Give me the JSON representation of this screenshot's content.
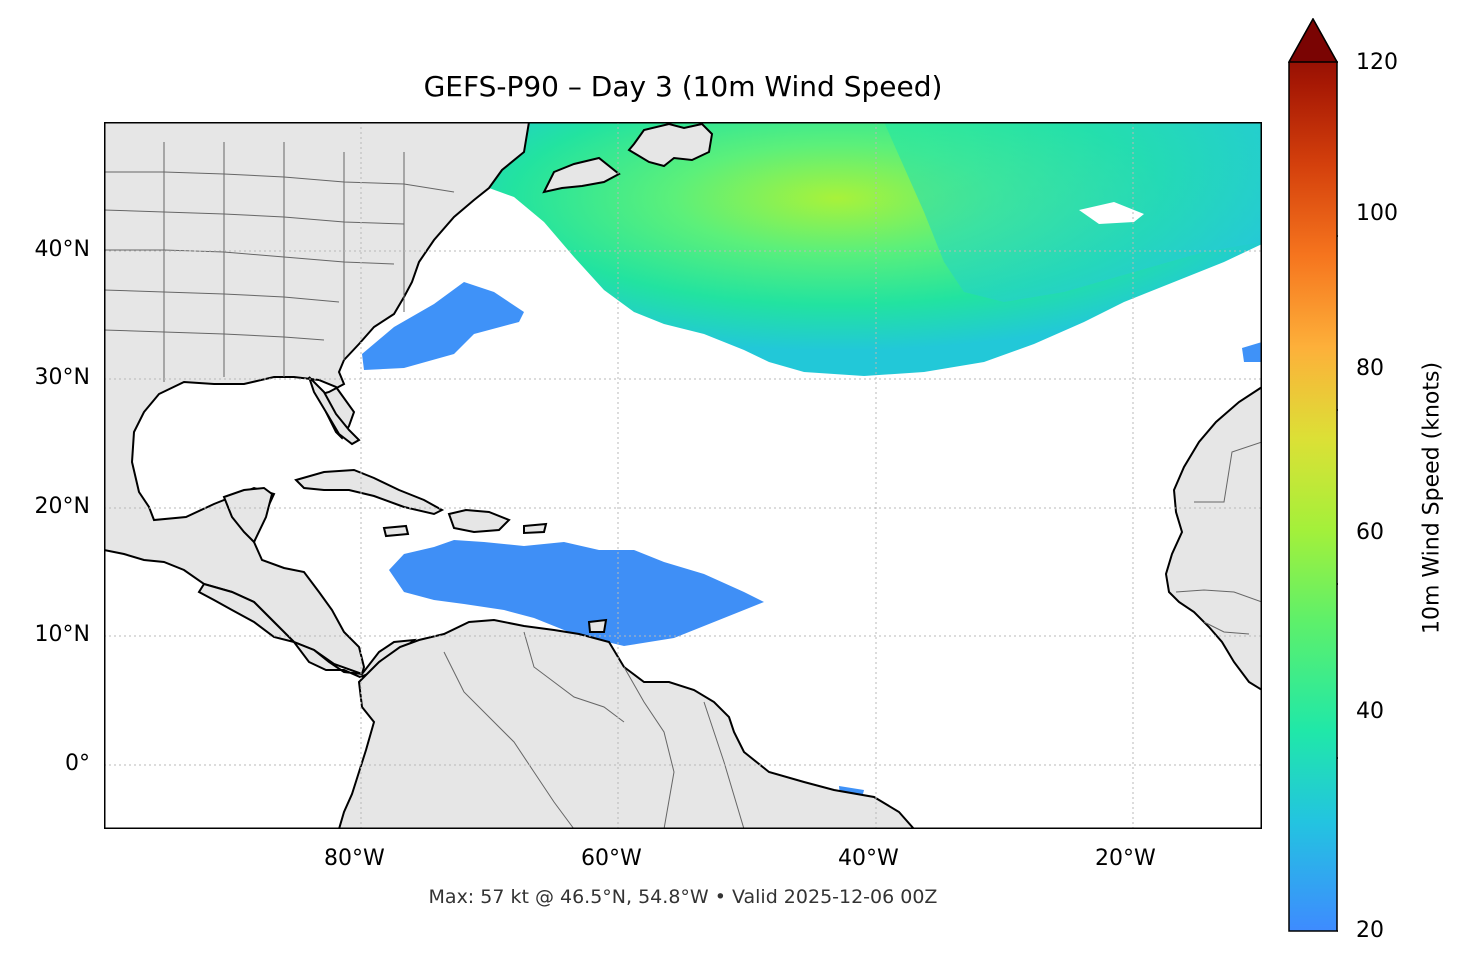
{
  "title": "GEFS-P90 – Day 3 (10m Wind Speed)",
  "caption": "Max: 57 kt @ 46.5°N, 54.8°W • Valid 2025-12-06 00Z",
  "map": {
    "extent": {
      "lon_min": -100,
      "lon_max": -10,
      "lat_min": -5,
      "lat_max": 50
    },
    "lat_ticks": [
      {
        "value": 40,
        "label": "40°N"
      },
      {
        "value": 30,
        "label": "30°N"
      },
      {
        "value": 20,
        "label": "20°N"
      },
      {
        "value": 10,
        "label": "10°N"
      },
      {
        "value": 0,
        "label": "0°"
      }
    ],
    "lon_ticks": [
      {
        "value": -80,
        "label": "80°W"
      },
      {
        "value": -60,
        "label": "60°W"
      },
      {
        "value": -40,
        "label": "40°W"
      },
      {
        "value": -20,
        "label": "20°W"
      }
    ],
    "gridlines": true,
    "land_color": "#e6e6e6",
    "coast_color": "#000000",
    "border_color": "#666666"
  },
  "colorbar": {
    "label": "10m Wind Speed (knots)",
    "min": 20,
    "max": 120,
    "extend": "max",
    "ticks": [
      {
        "value": 120,
        "label": "120"
      },
      {
        "value": 100,
        "label": "100"
      },
      {
        "value": 80,
        "label": "80"
      },
      {
        "value": 60,
        "label": "60"
      },
      {
        "value": 40,
        "label": "40"
      },
      {
        "value": 20,
        "label": "20"
      }
    ],
    "colormap": "turbo"
  },
  "wind_max": {
    "value_kt": 57,
    "lat": 46.5,
    "lon": -54.8
  },
  "valid_time": "2025-12-06 00Z"
}
